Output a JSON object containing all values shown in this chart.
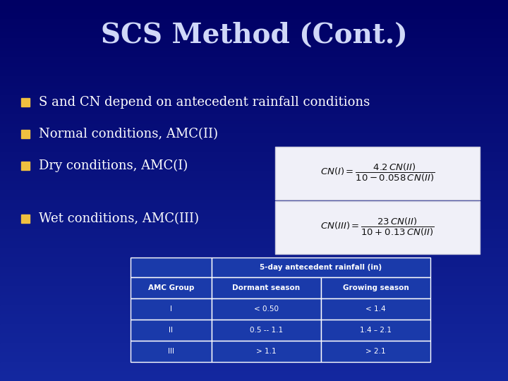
{
  "title": "SCS Method (Cont.)",
  "bg_color_top": "#00008b",
  "bg_color_bottom": "#1a3aaa",
  "title_color": "#d0d8f8",
  "bullet_color": "#f0c040",
  "text_color": "#ffffff",
  "formula_bg": "#f0f0f8",
  "formula_border": "#ccccdd",
  "table_bg": "#1a3aaa",
  "table_border": "#ffffff",
  "bullets": [
    "S and CN depend on antecedent rainfall conditions",
    "Normal conditions, AMC(II)",
    "Dry conditions, AMC(I)",
    "Wet conditions, AMC(III)"
  ],
  "table_header_main": "5-day antecedent rainfall (in)",
  "table_col_headers": [
    "AMC Group",
    "Dormant season",
    "Growing season"
  ],
  "table_rows": [
    [
      "I",
      "< 0.50",
      "< 1.4"
    ],
    [
      "II",
      "0.5 -- 1.1",
      "1.4 – 2.1"
    ],
    [
      "III",
      "> 1.1",
      "> 2.1"
    ]
  ]
}
